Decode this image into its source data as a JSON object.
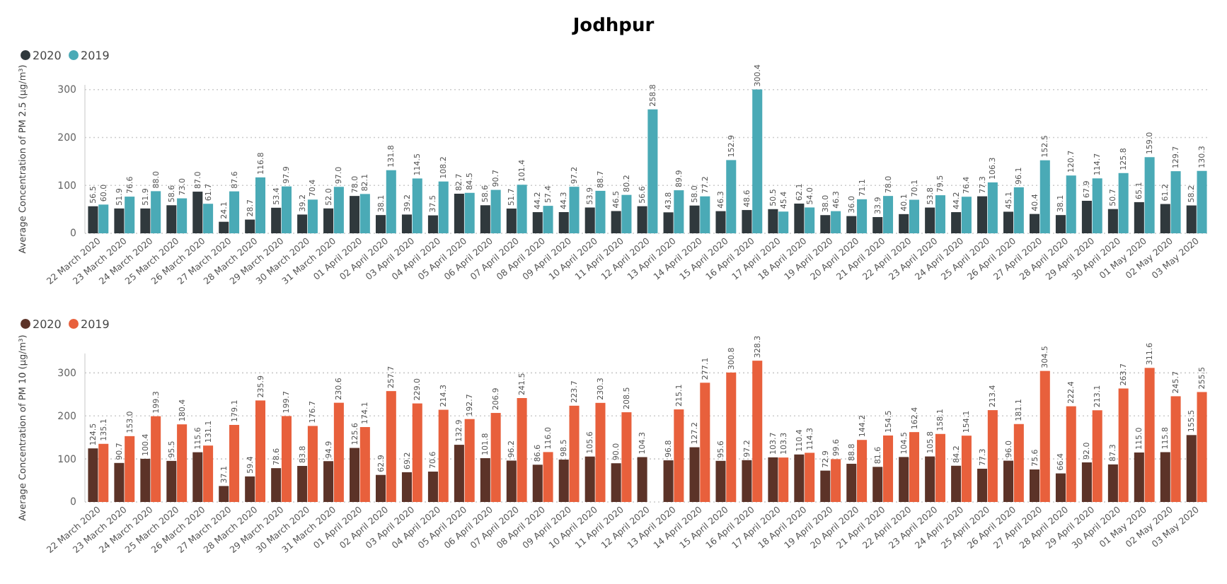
{
  "chart_data": [
    {
      "type": "bar",
      "title": "Jodhpur",
      "ylabel": "Average Concentration of PM 2.5 (µg/m³)",
      "categories": [
        "22 March 2020",
        "23 March 2020",
        "24 March 2020",
        "25 March 2020",
        "26 March 2020",
        "27 March 2020",
        "28 March 2020",
        "29 March 2020",
        "30 March 2020",
        "31 March 2020",
        "01 April 2020",
        "02 April 2020",
        "03 April 2020",
        "04 April 2020",
        "05 April 2020",
        "06 April 2020",
        "07 April 2020",
        "08 April 2020",
        "09 April 2020",
        "10 April 2020",
        "11 April 2020",
        "12 April 2020",
        "13 April 2020",
        "14 April 2020",
        "15 April 2020",
        "16 April 2020",
        "17 April 2020",
        "18 April 2020",
        "19 April 2020",
        "20 April 2020",
        "21 April 2020",
        "22 April 2020",
        "23 April 2020",
        "24 April 2020",
        "25 April 2020",
        "26 April 2020",
        "27 April 2020",
        "28 April 2020",
        "29 April 2020",
        "30 April 2020",
        "01 May 2020",
        "02 May 2020",
        "03 May 2020"
      ],
      "series": [
        {
          "name": "2020",
          "color": "#30393d",
          "values": [
            56.5,
            51.9,
            51.9,
            58.6,
            87.0,
            24.1,
            28.7,
            53.4,
            39.2,
            52.0,
            78.0,
            38.1,
            39.2,
            37.5,
            82.7,
            58.6,
            51.7,
            44.2,
            44.3,
            53.9,
            46.5,
            56.6,
            43.8,
            58.0,
            46.3,
            48.6,
            50.5,
            62.1,
            38.0,
            36.0,
            33.9,
            40.1,
            53.8,
            44.2,
            77.3,
            45.1,
            40.4,
            38.1,
            67.9,
            50.7,
            65.1,
            61.2,
            58.2
          ],
          "value_labels": [
            "56.5",
            "51.9",
            "51.9",
            "58.6",
            "87.0",
            "24.1",
            "28.7",
            "53.4",
            "39.2",
            "52.0",
            "78.0",
            "38.1",
            "39.2",
            "37.5",
            "82.7",
            "58.6",
            "51.7",
            "44.2",
            "44.3",
            "53.9",
            "46.5",
            "56.6",
            "43.8",
            "58.0",
            "46.3",
            "48.6",
            "50.5",
            "62.1",
            "38.0",
            "36.0",
            "33.9",
            "40.1",
            "53.8",
            "44.2",
            "77.3",
            "45.1",
            "40.4",
            "38.1",
            "67.9",
            "50.7",
            "65.1",
            "61.2",
            "58.2"
          ]
        },
        {
          "name": "2019",
          "color": "#4aaab6",
          "values": [
            60.0,
            76.6,
            88.0,
            73.0,
            61.7,
            87.6,
            116.8,
            97.9,
            70.4,
            97.0,
            82.1,
            131.8,
            114.5,
            108.2,
            84.5,
            90.7,
            101.4,
            57.4,
            97.2,
            88.7,
            80.2,
            258.8,
            89.9,
            77.2,
            152.9,
            300.4,
            45.4,
            54.0,
            46.3,
            71.1,
            78.0,
            70.1,
            79.5,
            76.4,
            106.3,
            96.1,
            152.5,
            120.7,
            114.7,
            125.8,
            159.0,
            129.7,
            130.3
          ],
          "value_labels": [
            "60.0",
            "76.6",
            "88.0",
            "73.0",
            "61.7",
            "87.6",
            "116.8",
            "97.9",
            "70.4",
            "97.0",
            "82.1",
            "131.8",
            "114.5",
            "108.2",
            "84.5",
            "90.7",
            "101.4",
            "57.4",
            "97.2",
            "88.7",
            "80.2",
            "258.8",
            "89.9",
            "77.2",
            "152.9",
            "300.4",
            "45.4",
            "54.0",
            "46.3",
            "71.1",
            "78.0",
            "70.1",
            "79.5",
            "76.4",
            "106.3",
            "96.1",
            "152.5",
            "120.7",
            "114.7",
            "125.8",
            "159.0",
            "129.7",
            "130.3"
          ]
        }
      ],
      "ylim": [
        0,
        310
      ],
      "yticks": [
        0,
        100,
        200,
        300
      ],
      "grid": "y",
      "legend": "top left"
    },
    {
      "type": "bar",
      "ylabel": "Average Concentration of PM 10 (µg/m³)",
      "categories": [
        "22 March 2020",
        "23 March 2020",
        "24 March 2020",
        "25 March 2020",
        "26 March 2020",
        "27 March 2020",
        "28 March 2020",
        "29 March 2020",
        "30 March 2020",
        "31 March 2020",
        "01 April 2020",
        "02 April 2020",
        "03 April 2020",
        "04 April 2020",
        "05 April 2020",
        "06 April 2020",
        "07 April 2020",
        "08 April 2020",
        "09 April 2020",
        "10 April 2020",
        "11 April 2020",
        "12 April 2020",
        "13 April 2020",
        "14 April 2020",
        "15 April 2020",
        "16 April 2020",
        "17 April 2020",
        "18 April 2020",
        "19 April 2020",
        "20 April 2020",
        "21 April 2020",
        "22 April 2020",
        "23 April 2020",
        "24 April 2020",
        "25 April 2020",
        "26 April 2020",
        "27 April 2020",
        "28 April 2020",
        "29 April 2020",
        "30 April 2020",
        "01 May 2020",
        "02 May 2020",
        "03 May 2020"
      ],
      "series": [
        {
          "name": "2020",
          "color": "#5c3328",
          "values": [
            124.5,
            90.7,
            100.4,
            95.5,
            115.6,
            37.1,
            59.4,
            78.6,
            83.8,
            94.9,
            125.6,
            62.9,
            69.2,
            70.6,
            132.9,
            101.8,
            96.2,
            86.6,
            98.5,
            105.6,
            90.0,
            104.3,
            96.8,
            127.2,
            95.6,
            97.2,
            103.7,
            110.4,
            72.9,
            88.8,
            81.6,
            104.5,
            105.8,
            84.2,
            77.3,
            96.0,
            75.6,
            66.4,
            92.0,
            87.3,
            115.0,
            115.8,
            155.5
          ],
          "value_labels": [
            "124.5",
            "90.7",
            "100.4",
            "95.5",
            "115.6",
            "37.1",
            "59.4",
            "78.6",
            "83.8",
            "94.9",
            "125.6",
            "62.9",
            "69.2",
            "70.6",
            "132.9",
            "101.8",
            "96.2",
            "86.6",
            "98.5",
            "105.6",
            "90.0",
            "104.3",
            "96.8",
            "127.2",
            "95.6",
            "97.2",
            "103.7",
            "110.4",
            "72.9",
            "88.8",
            "81.6",
            "104.5",
            "105.8",
            "84.2",
            "77.3",
            "96.0",
            "75.6",
            "66.4",
            "92.0",
            "87.3",
            "115.0",
            "115.8",
            "155.5"
          ]
        },
        {
          "name": "2019",
          "color": "#e8603c",
          "values": [
            135.1,
            153.0,
            199.3,
            180.4,
            131.1,
            179.1,
            235.9,
            199.7,
            176.7,
            230.6,
            174.1,
            257.7,
            229.0,
            214.3,
            192.7,
            206.9,
            241.5,
            116.0,
            223.7,
            230.3,
            208.5,
            null,
            215.1,
            277.1,
            300.8,
            328.3,
            103.3,
            114.3,
            99.6,
            144.2,
            154.5,
            162.4,
            158.1,
            154.1,
            213.4,
            181.1,
            304.5,
            222.4,
            213.1,
            263.7,
            311.6,
            245.7,
            255.5
          ],
          "value_labels": [
            "135.1",
            "153.0",
            "199.3",
            "180.4",
            "131.1",
            "179.1",
            "235.9",
            "199.7",
            "176.7",
            "230.6",
            "174.1",
            "257.7",
            "229.0",
            "214.3",
            "192.7",
            "206.9",
            "241.5",
            "116.0",
            "223.7",
            "230.3",
            "208.5",
            null,
            "215.1",
            "277.1",
            "300.8",
            "328.3",
            "103.3",
            "114.3",
            "99.6",
            "144.2",
            "154.5",
            "162.4",
            "158.1",
            "154.1",
            "213.4",
            "181.1",
            "304.5",
            "222.4",
            "213.1",
            "263.7",
            "311.6",
            "245.7",
            "255.5"
          ]
        }
      ],
      "ylim": [
        0,
        345
      ],
      "yticks": [
        0,
        100,
        200,
        300
      ],
      "grid": "y",
      "legend": "top left"
    }
  ]
}
